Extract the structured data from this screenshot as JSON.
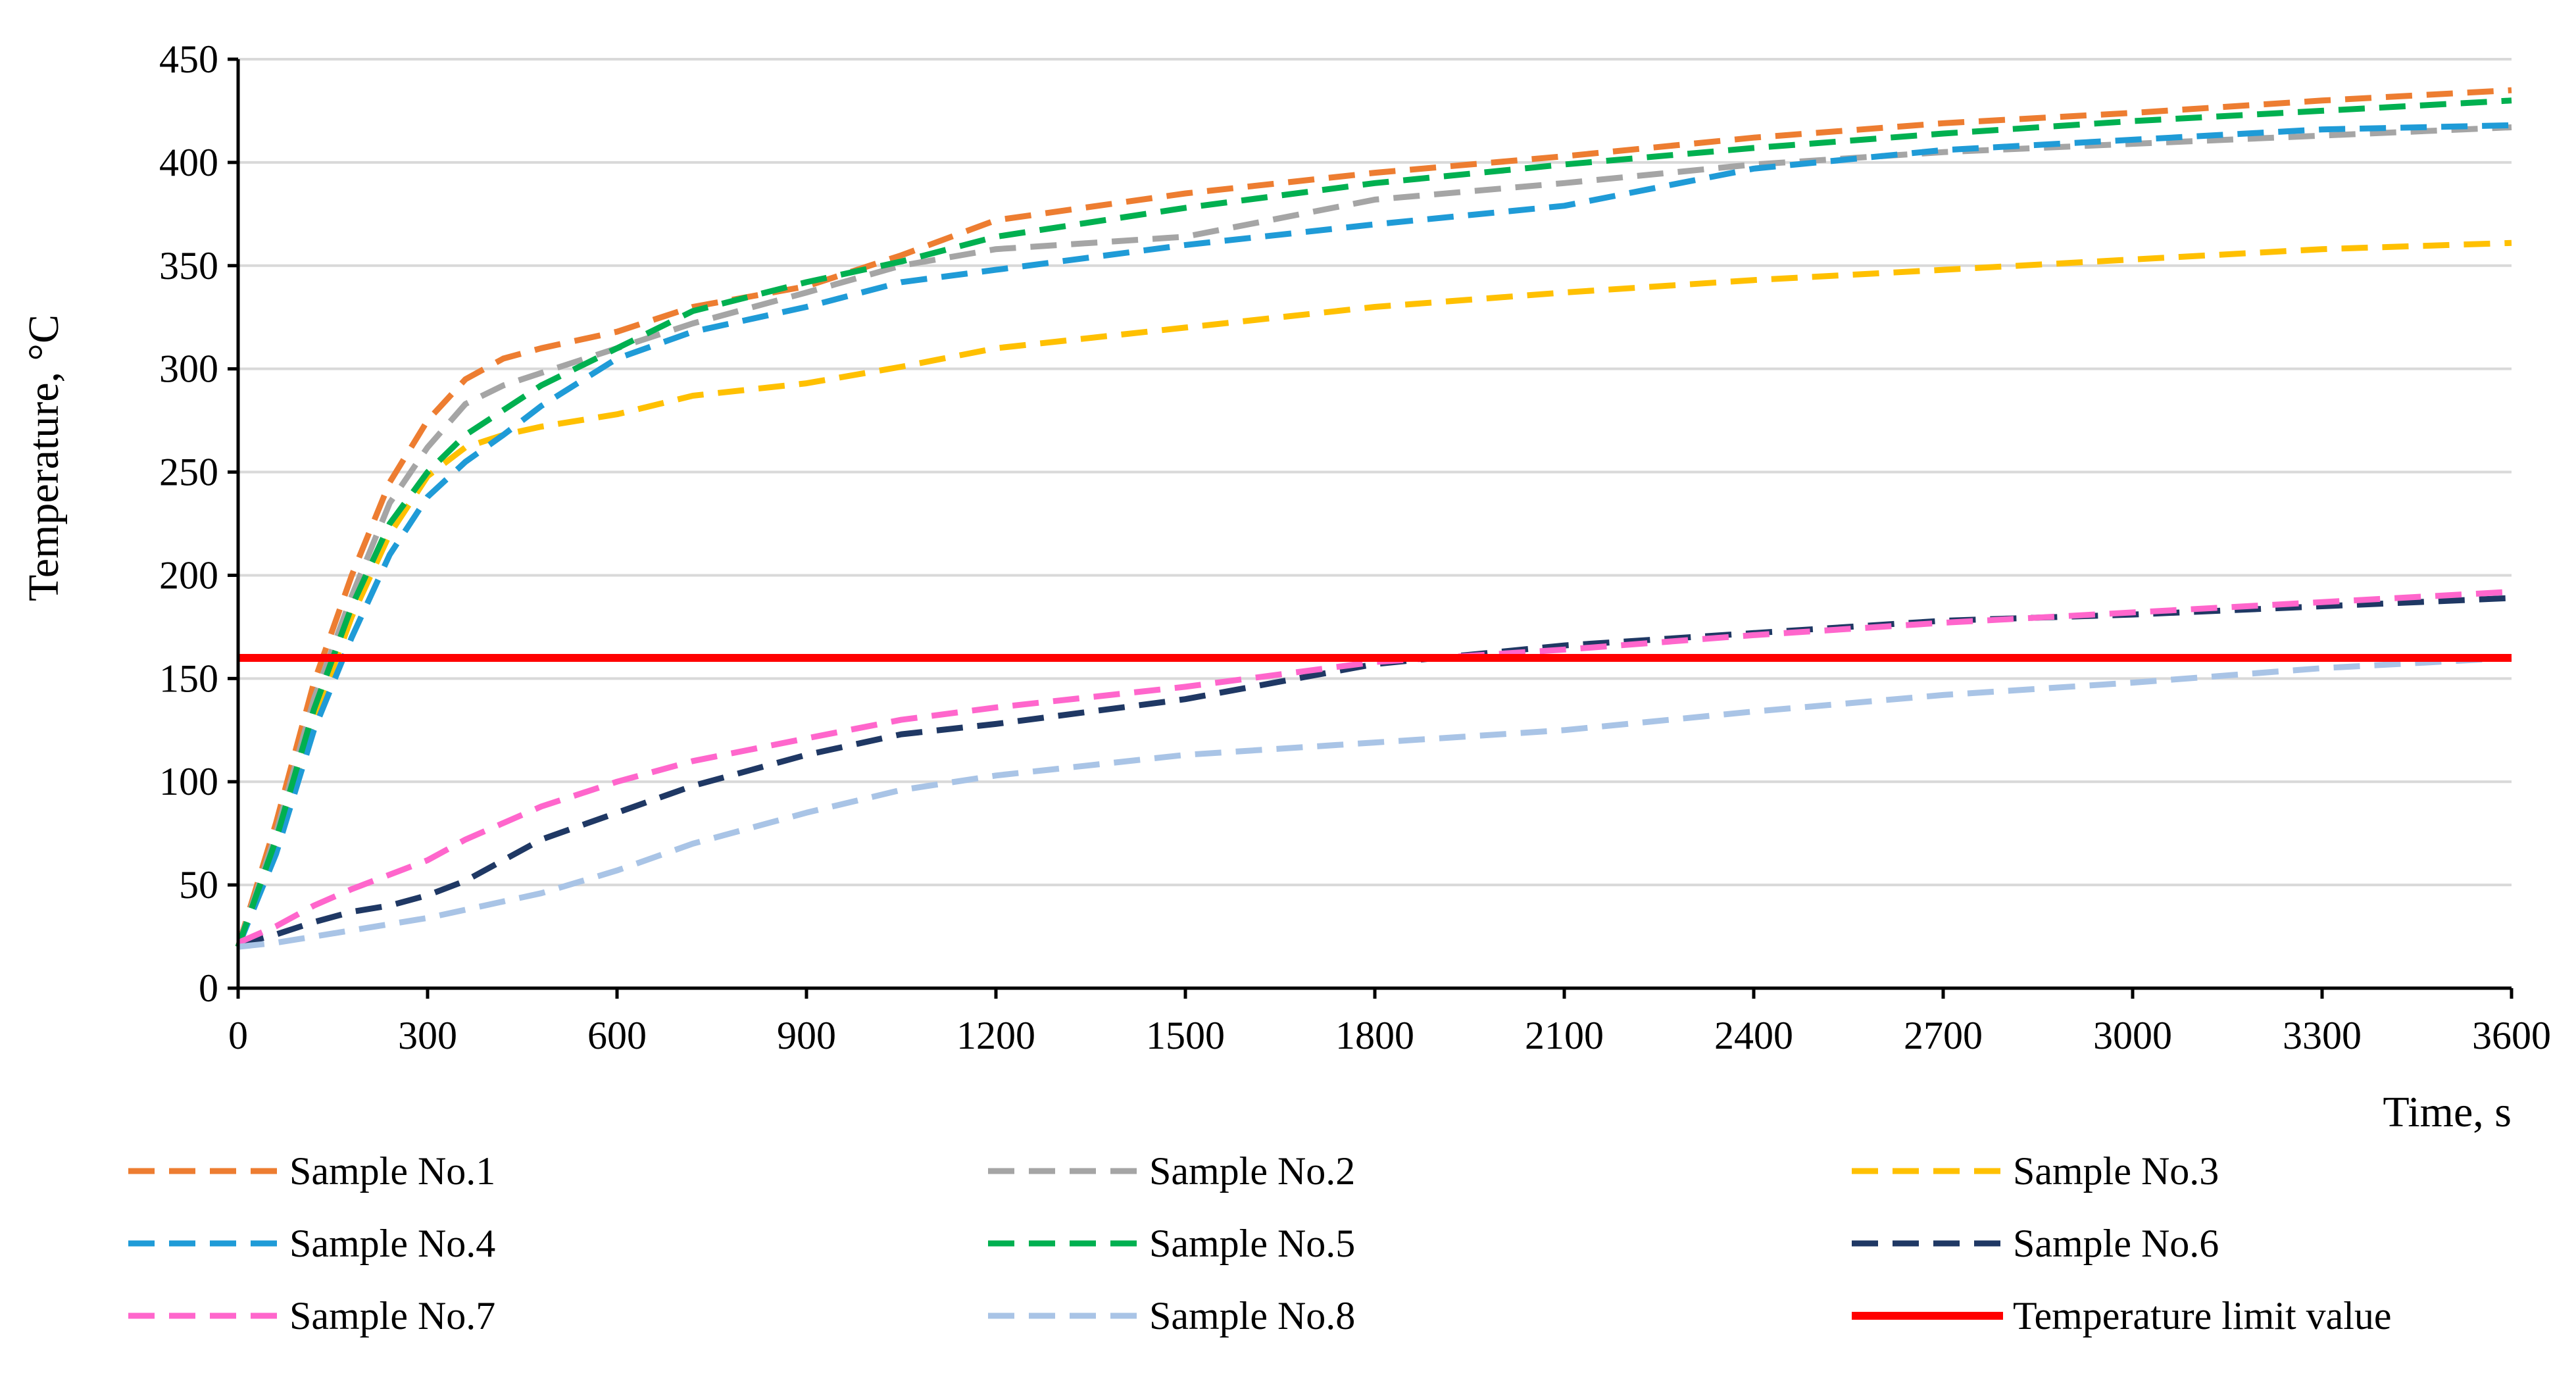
{
  "chart_data": {
    "type": "line",
    "title": "",
    "xlabel": "Time, s",
    "ylabel": "Temperature, °C",
    "xlim": [
      0,
      3600
    ],
    "ylim": [
      0,
      450
    ],
    "x_ticks": [
      0,
      300,
      600,
      900,
      1200,
      1500,
      1800,
      2100,
      2400,
      2700,
      3000,
      3300,
      3600
    ],
    "y_ticks": [
      0,
      50,
      100,
      150,
      200,
      250,
      300,
      350,
      400,
      450
    ],
    "grid": "horizontal",
    "legend_position": "bottom",
    "series": [
      {
        "name": "Sample No.1",
        "color": "#ED7D31",
        "style": "dashed",
        "x": [
          0,
          60,
          120,
          180,
          240,
          300,
          360,
          420,
          480,
          600,
          720,
          900,
          1050,
          1200,
          1500,
          1800,
          2100,
          2400,
          2700,
          3000,
          3300,
          3600
        ],
        "y": [
          20,
          80,
          148,
          200,
          245,
          275,
          295,
          305,
          310,
          318,
          330,
          340,
          355,
          372,
          385,
          395,
          403,
          412,
          419,
          424,
          430,
          435
        ]
      },
      {
        "name": "Sample No.2",
        "color": "#A5A5A5",
        "style": "dashed",
        "x": [
          0,
          60,
          120,
          180,
          240,
          300,
          360,
          420,
          480,
          600,
          720,
          900,
          1050,
          1200,
          1500,
          1800,
          2100,
          2400,
          2700,
          3000,
          3300,
          3600
        ],
        "y": [
          20,
          75,
          140,
          190,
          235,
          262,
          283,
          292,
          298,
          310,
          322,
          337,
          350,
          358,
          364,
          382,
          390,
          399,
          405,
          409,
          413,
          417
        ]
      },
      {
        "name": "Sample No.3",
        "color": "#FFC000",
        "style": "dashed",
        "x": [
          0,
          60,
          120,
          180,
          240,
          300,
          360,
          420,
          480,
          600,
          720,
          900,
          1050,
          1200,
          1500,
          1800,
          2100,
          2400,
          2700,
          3000,
          3300,
          3600
        ],
        "y": [
          20,
          70,
          130,
          180,
          220,
          248,
          262,
          268,
          272,
          278,
          287,
          293,
          301,
          310,
          320,
          330,
          337,
          343,
          348,
          353,
          358,
          361
        ]
      },
      {
        "name": "Sample No.4",
        "color": "#1F9BD7",
        "style": "dashed",
        "x": [
          0,
          60,
          120,
          180,
          240,
          300,
          360,
          420,
          480,
          600,
          720,
          900,
          1050,
          1200,
          1500,
          1800,
          2100,
          2400,
          2700,
          3000,
          3300,
          3600
        ],
        "y": [
          20,
          65,
          125,
          170,
          210,
          238,
          255,
          268,
          282,
          305,
          318,
          330,
          342,
          348,
          360,
          370,
          379,
          397,
          406,
          411,
          416,
          418
        ]
      },
      {
        "name": "Sample No.5",
        "color": "#00B050",
        "style": "dashed",
        "x": [
          0,
          60,
          120,
          180,
          240,
          300,
          360,
          420,
          480,
          600,
          720,
          900,
          1050,
          1200,
          1500,
          1800,
          2100,
          2400,
          2700,
          3000,
          3300,
          3600
        ],
        "y": [
          20,
          72,
          135,
          185,
          225,
          250,
          268,
          280,
          292,
          310,
          328,
          342,
          352,
          364,
          378,
          390,
          399,
          407,
          414,
          420,
          425,
          430
        ]
      },
      {
        "name": "Sample No.6",
        "color": "#1F3864",
        "style": "dashed",
        "x": [
          0,
          60,
          120,
          180,
          240,
          300,
          360,
          420,
          480,
          600,
          720,
          900,
          1050,
          1200,
          1500,
          1800,
          2100,
          2400,
          2700,
          3000,
          3300,
          3600
        ],
        "y": [
          21,
          26,
          32,
          37,
          40,
          45,
          52,
          62,
          72,
          85,
          98,
          113,
          123,
          128,
          140,
          157,
          166,
          172,
          178,
          181,
          185,
          189
        ]
      },
      {
        "name": "Sample No.7",
        "color": "#FF66CC",
        "style": "dashed",
        "x": [
          0,
          60,
          120,
          180,
          240,
          300,
          360,
          420,
          480,
          600,
          720,
          900,
          1050,
          1200,
          1500,
          1800,
          2100,
          2400,
          2700,
          3000,
          3300,
          3600
        ],
        "y": [
          22,
          30,
          40,
          48,
          55,
          62,
          72,
          80,
          88,
          100,
          110,
          121,
          130,
          136,
          146,
          158,
          164,
          171,
          177,
          182,
          187,
          192
        ]
      },
      {
        "name": "Sample No.8",
        "color": "#A9C4E6",
        "style": "dashed",
        "x": [
          0,
          60,
          120,
          180,
          240,
          300,
          360,
          420,
          480,
          600,
          720,
          900,
          1050,
          1200,
          1500,
          1800,
          2100,
          2400,
          2700,
          3000,
          3300,
          3600
        ],
        "y": [
          20,
          22,
          25,
          28,
          31,
          34,
          38,
          42,
          46,
          57,
          70,
          85,
          96,
          103,
          113,
          119,
          125,
          134,
          142,
          148,
          155,
          160
        ]
      },
      {
        "name": "Temperature limit value",
        "color": "#FF0000",
        "style": "solid",
        "x": [
          0,
          3600
        ],
        "y": [
          160,
          160
        ]
      }
    ]
  }
}
